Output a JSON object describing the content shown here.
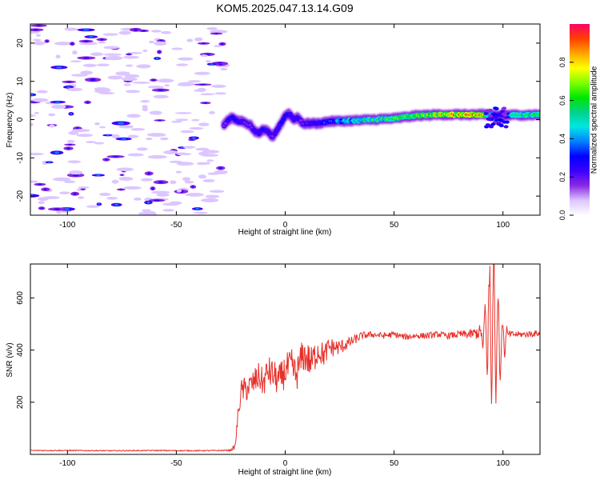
{
  "figure": {
    "title": "KOM5.2025.047.13.14.G09"
  },
  "chart_data": [
    {
      "type": "heatmap",
      "xlabel": "Height of straight line (km)",
      "ylabel": "Frequency (Hz)",
      "xlim": [
        -117,
        117
      ],
      "ylim": [
        -25,
        25
      ],
      "xticks": [
        -100,
        -50,
        0,
        50,
        100
      ],
      "yticks": [
        -20,
        -10,
        0,
        10,
        20
      ],
      "grid": false,
      "colorbar": {
        "label": "Normalized spectral amplitude",
        "range": [
          0,
          1
        ],
        "ticks": [
          0.0,
          0.2,
          0.4,
          0.6,
          0.8
        ],
        "colors": [
          "#ffffff",
          "#dcc6ff",
          "#8a2be2",
          "#3b00ff",
          "#0000ff",
          "#0080ff",
          "#00e5e5",
          "#00d28a",
          "#00e600",
          "#7fff00",
          "#ffff00",
          "#ffa500",
          "#ff4000",
          "#ff0066"
        ]
      },
      "noise_region_x": [
        -117,
        -28
      ],
      "ridge": {
        "x": [
          -28,
          -26,
          -24,
          -22,
          -20,
          -18,
          -16,
          -14,
          -12,
          -10,
          -8,
          -6,
          -4,
          -2,
          0,
          2,
          4,
          6,
          8,
          10,
          15,
          20,
          30,
          40,
          50,
          60,
          70,
          80,
          90,
          95,
          100,
          105,
          110,
          117
        ],
        "y": [
          -1.5,
          0.0,
          0.5,
          -0.5,
          -0.5,
          -1.0,
          -1.5,
          -3.0,
          -3.5,
          -2.5,
          -3.0,
          -4.5,
          -3.0,
          -1.0,
          1.0,
          1.5,
          0.0,
          0.5,
          -1.0,
          -1.0,
          -1.0,
          -0.5,
          -0.3,
          0.0,
          0.3,
          1.0,
          1.3,
          1.3,
          1.3,
          1.2,
          1.0,
          1.2,
          1.2,
          1.3
        ],
        "amp": [
          0.12,
          0.3,
          0.35,
          0.3,
          0.25,
          0.18,
          0.15,
          0.2,
          0.3,
          0.28,
          0.25,
          0.2,
          0.25,
          0.3,
          0.32,
          0.3,
          0.28,
          0.25,
          0.2,
          0.22,
          0.28,
          0.35,
          0.5,
          0.6,
          0.65,
          0.7,
          0.8,
          0.9,
          0.95,
          0.35,
          0.25,
          0.55,
          0.6,
          0.6
        ]
      }
    },
    {
      "type": "line",
      "xlabel": "Height of straight line (km)",
      "ylabel": "SNR (v/v)",
      "xlim": [
        -117,
        117
      ],
      "ylim": [
        0,
        730
      ],
      "xticks": [
        -100,
        -50,
        0,
        50,
        100
      ],
      "yticks": [
        200,
        400,
        600
      ],
      "grid": false,
      "series": [
        {
          "color": "#e8302a",
          "x": [
            -117,
            -100,
            -80,
            -60,
            -40,
            -30,
            -25,
            -23,
            -22,
            -21,
            -20,
            -18,
            -15,
            -12,
            -10,
            -8,
            -5,
            -3,
            0,
            3,
            5,
            8,
            10,
            12,
            15,
            18,
            20,
            25,
            30,
            35,
            40,
            45,
            50,
            55,
            60,
            65,
            70,
            75,
            80,
            85,
            90,
            92,
            94,
            96,
            98,
            100,
            102,
            105,
            110,
            117
          ],
          "y": [
            15,
            15,
            14,
            15,
            14,
            15,
            16,
            30,
            120,
            200,
            245,
            250,
            270,
            300,
            270,
            320,
            300,
            280,
            320,
            340,
            300,
            380,
            370,
            350,
            400,
            380,
            410,
            410,
            430,
            455,
            460,
            455,
            460,
            450,
            455,
            455,
            460,
            455,
            460,
            460,
            470,
            480,
            500,
            480,
            450,
            430,
            460,
            460,
            460,
            465
          ],
          "noise": [
            2,
            2,
            2,
            2,
            2,
            2,
            3,
            10,
            30,
            40,
            45,
            50,
            50,
            55,
            55,
            60,
            60,
            60,
            65,
            65,
            65,
            65,
            65,
            65,
            55,
            45,
            40,
            30,
            20,
            15,
            12,
            12,
            12,
            12,
            12,
            12,
            12,
            12,
            14,
            18,
            30,
            70,
            140,
            150,
            110,
            50,
            15,
            12,
            12,
            12
          ]
        }
      ]
    }
  ]
}
